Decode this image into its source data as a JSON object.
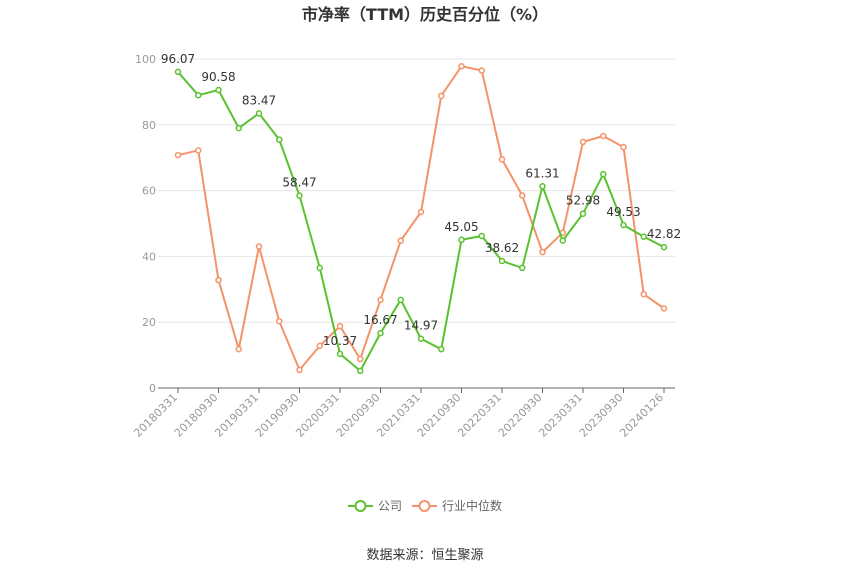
{
  "chart_data": {
    "type": "line",
    "title": "市净率（TTM）历史百分位（%）",
    "source": "数据来源：恒生聚源",
    "ylim": [
      0,
      100
    ],
    "yticks": [
      0,
      20,
      40,
      60,
      80,
      100
    ],
    "grid": true,
    "legend_position": "bottom",
    "x": [
      "20180331",
      "20180630",
      "20180930",
      "20181231",
      "20190331",
      "20190630",
      "20190930",
      "20191231",
      "20200331",
      "20200630",
      "20200930",
      "20201231",
      "20210331",
      "20210630",
      "20210930",
      "20211231",
      "20220331",
      "20220630",
      "20220930",
      "20221231",
      "20230331",
      "20230630",
      "20230930",
      "20231231",
      "20240126"
    ],
    "xtick_labels": [
      "20180331",
      "20180930",
      "20190331",
      "20190930",
      "20200331",
      "20200930",
      "20210331",
      "20210930",
      "20220331",
      "20220930",
      "20230331",
      "20230930",
      "20240126"
    ],
    "series": [
      {
        "name": "公司",
        "color": "#5ac230",
        "values": [
          96.07,
          89.0,
          90.58,
          79.0,
          83.47,
          75.5,
          58.47,
          36.5,
          10.37,
          5.2,
          16.67,
          26.8,
          14.97,
          11.8,
          45.05,
          46.2,
          38.62,
          36.5,
          61.31,
          44.8,
          52.98,
          65.0,
          49.53,
          46.0,
          42.82
        ],
        "data_labels": [
          {
            "index": 0,
            "text": "96.07"
          },
          {
            "index": 2,
            "text": "90.58"
          },
          {
            "index": 4,
            "text": "83.47"
          },
          {
            "index": 6,
            "text": "58.47"
          },
          {
            "index": 8,
            "text": "10.37"
          },
          {
            "index": 10,
            "text": "16.67"
          },
          {
            "index": 12,
            "text": "14.97"
          },
          {
            "index": 14,
            "text": "45.05"
          },
          {
            "index": 16,
            "text": "38.62"
          },
          {
            "index": 18,
            "text": "61.31"
          },
          {
            "index": 20,
            "text": "52.98"
          },
          {
            "index": 22,
            "text": "49.53"
          },
          {
            "index": 24,
            "text": "42.82"
          }
        ]
      },
      {
        "name": "行业中位数",
        "color": "#f4936a",
        "values": [
          70.8,
          72.2,
          32.8,
          11.8,
          43.0,
          20.3,
          5.5,
          12.8,
          18.8,
          8.8,
          26.8,
          44.8,
          53.5,
          88.8,
          97.8,
          96.5,
          69.5,
          58.5,
          41.3,
          47.2,
          74.8,
          76.6,
          73.2,
          28.5,
          24.2
        ],
        "data_labels": []
      }
    ]
  }
}
